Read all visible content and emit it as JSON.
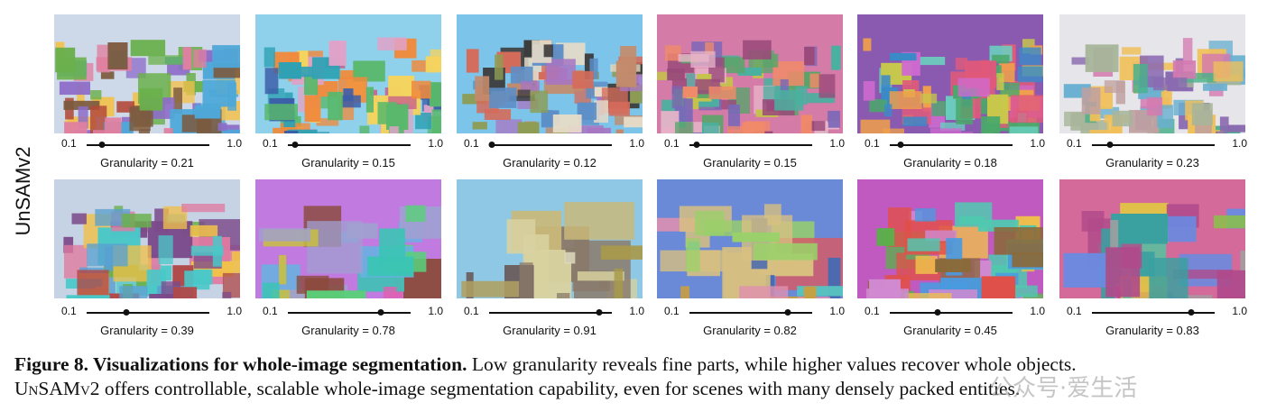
{
  "row_label": "UnSAMv2",
  "slider": {
    "min_label": "0.1",
    "max_label": "1.0",
    "prefix": "Granularity = "
  },
  "rows": [
    [
      {
        "granularity": "0.21",
        "knob": 0.21,
        "palette": [
          "#cdd9e8",
          "#7c5a3e",
          "#b24a3a",
          "#4ea8d8",
          "#e07fa0",
          "#6ab04c",
          "#f2c14e",
          "#8e6cc9"
        ]
      },
      {
        "granularity": "0.15",
        "knob": 0.15,
        "palette": [
          "#8fd0ea",
          "#2ea1b4",
          "#e0a2c8",
          "#f08a3c",
          "#58b86b",
          "#c75d8a",
          "#f4d35e",
          "#3b5ea8"
        ]
      },
      {
        "granularity": "0.12",
        "knob": 0.12,
        "palette": [
          "#7cc4ea",
          "#c38b6b",
          "#8e9c54",
          "#e8dcc8",
          "#d56b5a",
          "#5c8ec7",
          "#a876c2",
          "#3c3c3c"
        ]
      },
      {
        "granularity": "0.15",
        "knob": 0.15,
        "palette": [
          "#d47ba8",
          "#5aa46a",
          "#e8b4c8",
          "#7b67b8",
          "#4ab0a0",
          "#f08a6a",
          "#c4c44a",
          "#9a4a7a"
        ]
      },
      {
        "granularity": "0.18",
        "knob": 0.18,
        "palette": [
          "#8a5ab0",
          "#4aa86a",
          "#e05a7a",
          "#f0a04a",
          "#3a8ac8",
          "#c8c84a",
          "#6ad0c0",
          "#d06ad0"
        ]
      },
      {
        "granularity": "0.23",
        "knob": 0.23,
        "palette": [
          "#e6e6ea",
          "#a7b59a",
          "#d47ab0",
          "#6ab0d0",
          "#f0c05a",
          "#8a6ab0",
          "#4ab08a",
          "#c0a0a0"
        ]
      }
    ],
    [
      {
        "granularity": "0.39",
        "knob": 0.39,
        "palette": [
          "#c6d3e4",
          "#5aa0d0",
          "#7c4a8a",
          "#e07aa0",
          "#6ab04c",
          "#f0c04a",
          "#4ac8c8",
          "#b04a4a"
        ]
      },
      {
        "granularity": "0.78",
        "knob": 0.78,
        "palette": [
          "#c07ae0",
          "#3bc4b4",
          "#e060b0",
          "#6ab0e0",
          "#c8c040",
          "#8a4a3a",
          "#5ad07a",
          "#a0a0d0"
        ]
      },
      {
        "granularity": "0.91",
        "knob": 0.91,
        "palette": [
          "#8fc8e4",
          "#a89a4a",
          "#c9b97a",
          "#8a7a6a",
          "#d8d2a0",
          "#6a5a5a",
          "#b0a060",
          "#e0dcc0"
        ]
      },
      {
        "granularity": "0.82",
        "knob": 0.82,
        "palette": [
          "#6a8ad8",
          "#d8c080",
          "#58c0c0",
          "#d45a6a",
          "#9ad06a",
          "#e090b0",
          "#4a6ab0",
          "#c8a040"
        ]
      },
      {
        "granularity": "0.45",
        "knob": 0.45,
        "palette": [
          "#c05ac0",
          "#5ab04a",
          "#e0504a",
          "#4a9ae0",
          "#f0c04a",
          "#8a6a3a",
          "#50c8b0",
          "#d08ad0"
        ]
      },
      {
        "granularity": "0.83",
        "knob": 0.83,
        "palette": [
          "#d46a9a",
          "#3aa0a0",
          "#8ac04a",
          "#6a8ae0",
          "#e0c04a",
          "#b04a8a",
          "#50c8a0",
          "#a0a0a0"
        ]
      }
    ]
  ],
  "caption": {
    "bold": "Figure 8. Visualizations for whole-image segmentation.",
    "text1": " Low granularity reveals fine parts, while higher values recover whole objects.",
    "model": "UnSAMv2",
    "text2": " offers controllable, scalable whole-image segmentation capability, even for scenes with many densely packed entities."
  },
  "watermark": "公众号·爱生活"
}
